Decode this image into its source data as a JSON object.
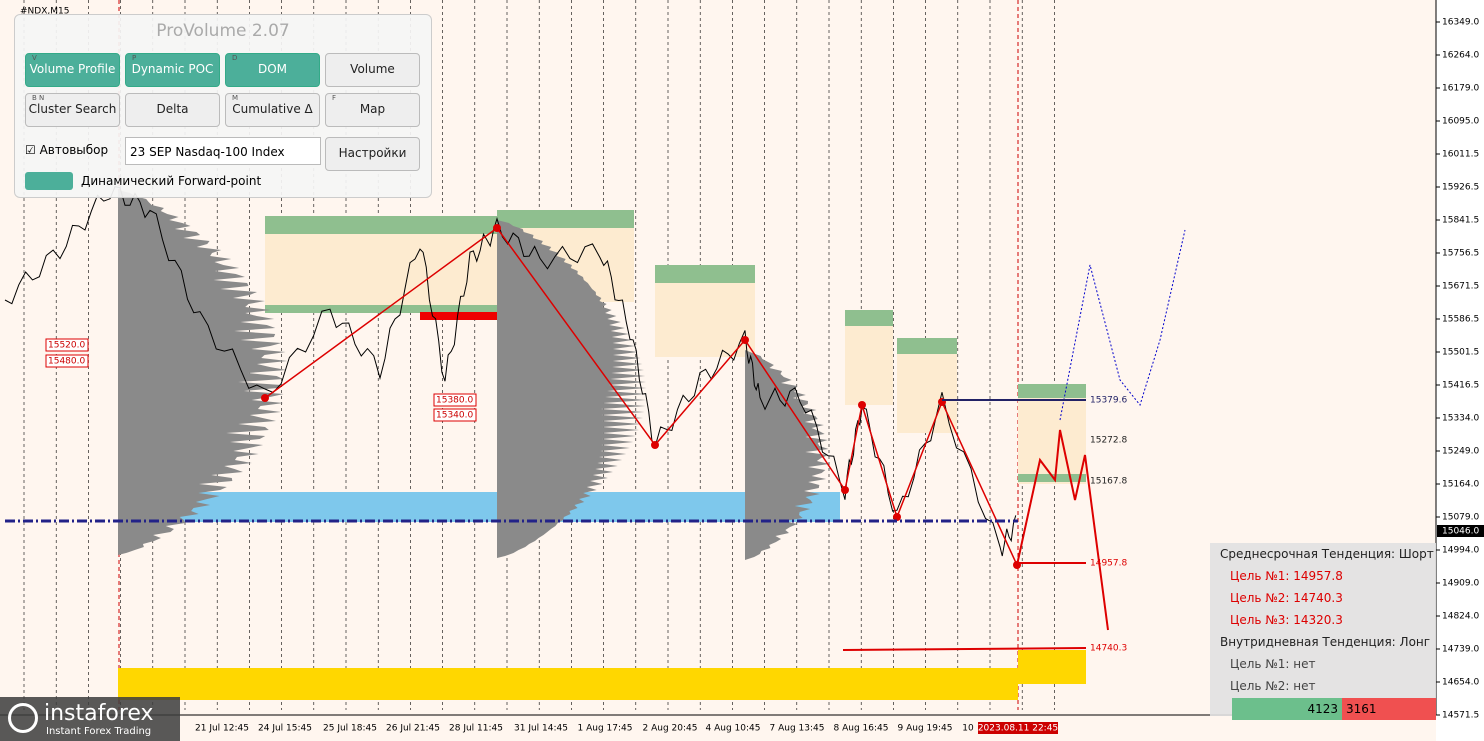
{
  "symbol": "#NDX,M15",
  "panel": {
    "title": "ProVolume 2.07",
    "buttons": [
      {
        "key": "V",
        "label": "Volume Profile",
        "active": true
      },
      {
        "key": "P",
        "label": "Dynamic POC",
        "active": true
      },
      {
        "key": "D",
        "label": "DOM",
        "active": true
      },
      {
        "label": "Volume",
        "active": false
      },
      {
        "key": "B N",
        "label": "Cluster Search",
        "active": false
      },
      {
        "label": "Delta",
        "active": false
      },
      {
        "key": "M",
        "label": "Cumulative Δ",
        "active": false
      },
      {
        "key": "F",
        "label": "Map",
        "active": false
      }
    ],
    "checkbox": "Автовыбор",
    "instrument": "23 SEP Nasdaq-100 Index",
    "settings": "Настройки",
    "forward": "Динамический Forward-point"
  },
  "price_axis": {
    "labels": [
      "16349.0",
      "16264.0",
      "16179.0",
      "16095.0",
      "16011.5",
      "15926.5",
      "15841.5",
      "15756.5",
      "15671.5",
      "15586.5",
      "15501.5",
      "15416.5",
      "15334.0",
      "15249.0",
      "15164.0",
      "15079.0",
      "14994.0",
      "14909.0",
      "14824.0",
      "14739.0",
      "14654.0",
      "14571.5"
    ],
    "current": "15046.0"
  },
  "time_axis": [
    "21 Jul 12:45",
    "24 Jul 15:45",
    "25 Jul 18:45",
    "26 Jul 21:45",
    "28 Jul 11:45",
    "31 Jul 14:45",
    "1 Aug 17:45",
    "2 Aug 20:45",
    "4 Aug 10:45",
    "7 Aug 13:45",
    "8 Aug 16:45",
    "9 Aug 19:45",
    "10",
    "2023.08.11 22:45"
  ],
  "level_labels": {
    "left": [
      "15520.0",
      "15480.0",
      "15380.0",
      "15340.0"
    ],
    "right": [
      "15379.6",
      "15272.8",
      "15167.8",
      "14957.8",
      "14740.3"
    ]
  },
  "trend_panel": {
    "rows": [
      {
        "text": "Среднесрочная Тенденция: Шорт",
        "style": "head"
      },
      {
        "text": "Цель №1: 14957.8",
        "style": "red"
      },
      {
        "text": "Цель №2: 14740.3",
        "style": "red"
      },
      {
        "text": "Цель №3: 14320.3",
        "style": "red"
      },
      {
        "text": "Внутридневная Тенденция: Лонг",
        "style": "head"
      },
      {
        "text": "Цель №1: нет",
        "style": "grey"
      },
      {
        "text": "Цель №2: нет",
        "style": "grey"
      }
    ],
    "counters": [
      "4123",
      "3161"
    ]
  },
  "logo": {
    "brand": "instaforex",
    "tagline": "Instant Forex Trading"
  }
}
